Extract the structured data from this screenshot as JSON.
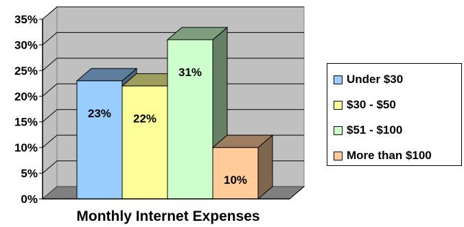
{
  "chart_data": {
    "type": "bar",
    "subtype": "3d-clustered-column",
    "title": "",
    "xlabel": "Monthly Internet Expenses",
    "ylabel": "",
    "ylim": [
      0,
      35
    ],
    "yticks": [
      "0%",
      "5%",
      "10%",
      "15%",
      "20%",
      "25%",
      "30%",
      "35%"
    ],
    "grid": true,
    "legend_position": "right",
    "series": [
      {
        "name": "Under $30",
        "value": 23,
        "label": "23%",
        "color": "#99CCFF"
      },
      {
        "name": "$30 - $50",
        "value": 22,
        "label": "22%",
        "color": "#FFFF99"
      },
      {
        "name": "$51 - $100",
        "value": 31,
        "label": "31%",
        "color": "#CCFFCC"
      },
      {
        "name": "More than $100",
        "value": 10,
        "label": "10%",
        "color": "#FFCC99"
      }
    ],
    "colors": {
      "wall": "#C0C0C0",
      "floor": "#808080",
      "gridline": "#000000"
    }
  }
}
